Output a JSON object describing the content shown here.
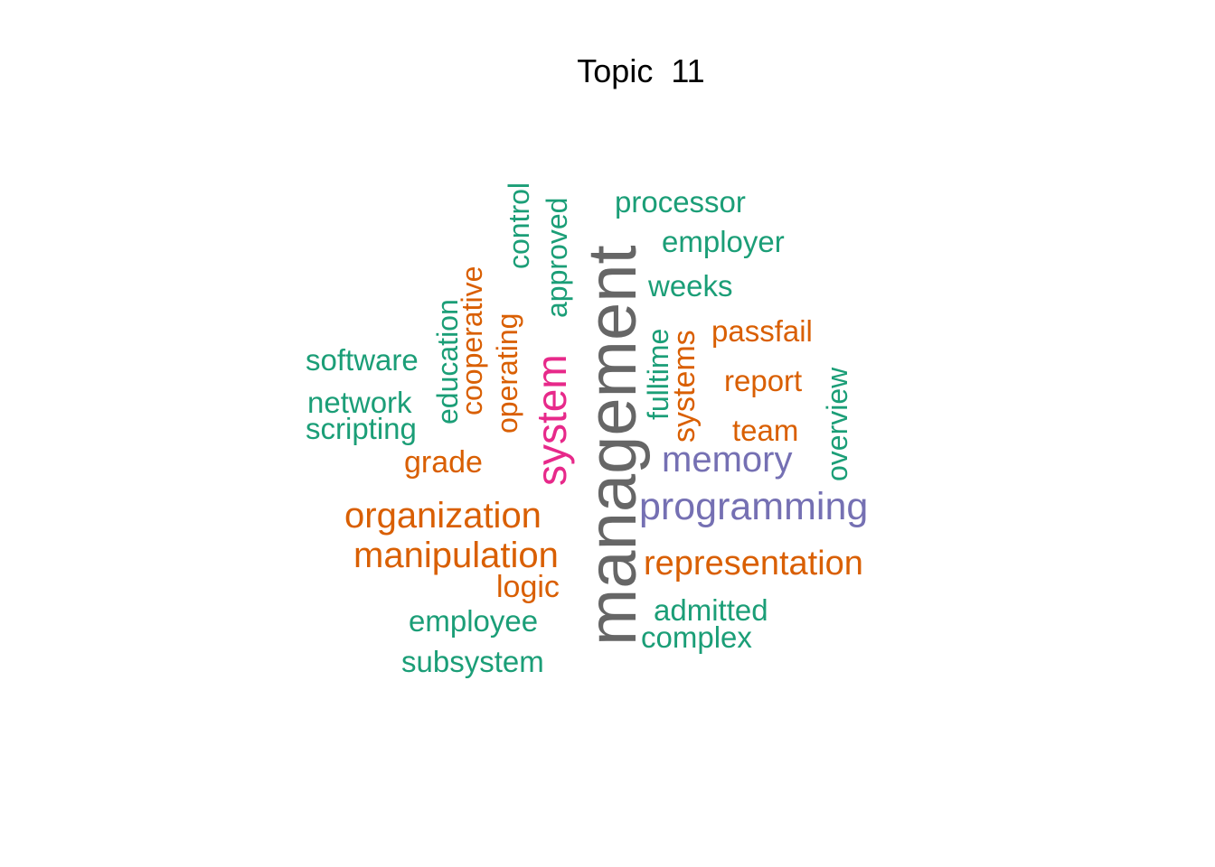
{
  "title": "Topic  11",
  "colors": {
    "green": "#1b9e77",
    "orange": "#d95f02",
    "purple": "#7570b3",
    "pink": "#e7298a",
    "gray": "#666666"
  },
  "words": {
    "management": "management",
    "system": "system",
    "programming": "programming",
    "memory": "memory",
    "representation": "representation",
    "organization": "organization",
    "manipulation": "manipulation",
    "logic": "logic",
    "employee": "employee",
    "subsystem": "subsystem",
    "grade": "grade",
    "software": "software",
    "network": "network",
    "scripting": "scripting",
    "education": "education",
    "cooperative": "cooperative",
    "operating": "operating",
    "control": "control",
    "approved": "approved",
    "processor": "processor",
    "employer": "employer",
    "weeks": "weeks",
    "fulltime": "fulltime",
    "systems": "systems",
    "passfail": "passfail",
    "report": "report",
    "team": "team",
    "overview": "overview",
    "admitted": "admitted",
    "complex": "complex"
  }
}
